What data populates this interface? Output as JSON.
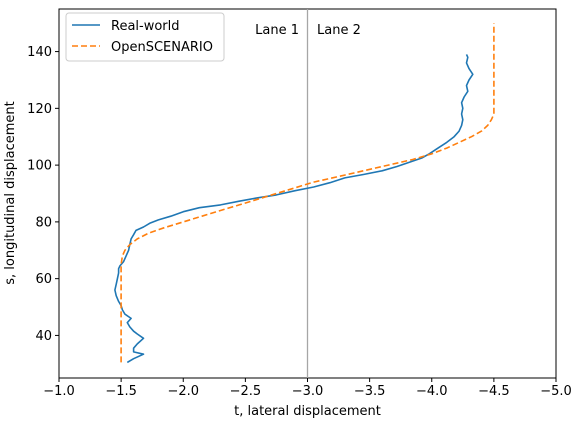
{
  "chart_data": {
    "type": "line",
    "xlabel": "t, lateral displacement",
    "ylabel": "s, longitudinal displacement",
    "xlim": [
      -1.0,
      -5.0
    ],
    "ylim": [
      25,
      155
    ],
    "xticks": [
      -1.0,
      -1.5,
      -2.0,
      -2.5,
      -3.0,
      -3.5,
      -4.0,
      -4.5,
      -5.0
    ],
    "xtick_labels": [
      "−1.0",
      "−1.5",
      "−2.0",
      "−2.5",
      "−3.0",
      "−3.5",
      "−4.0",
      "−4.5",
      "−5.0"
    ],
    "yticks": [
      40,
      60,
      80,
      100,
      120,
      140
    ],
    "ytick_labels": [
      "40",
      "60",
      "80",
      "100",
      "120",
      "140"
    ],
    "x_axis_inverted": true,
    "grid": false,
    "legend_position": "upper-left",
    "colors": {
      "real_world": "#1f77b4",
      "openscenario": "#ff7f0e",
      "lane_divider": "#a6a6a6"
    },
    "lane_divider": {
      "t": -3.0,
      "labels": [
        "Lane 1",
        "Lane 2"
      ]
    },
    "series": [
      {
        "name": "Real-world",
        "style": "solid",
        "points": [
          [
            -1.55,
            30.5
          ],
          [
            -1.6,
            31.8
          ],
          [
            -1.68,
            33.4
          ],
          [
            -1.6,
            34.2
          ],
          [
            -1.6,
            35.5
          ],
          [
            -1.63,
            37.0
          ],
          [
            -1.68,
            39.0
          ],
          [
            -1.63,
            40.5
          ],
          [
            -1.6,
            41.5
          ],
          [
            -1.57,
            43.0
          ],
          [
            -1.55,
            44.5
          ],
          [
            -1.58,
            46.0
          ],
          [
            -1.53,
            47.5
          ],
          [
            -1.51,
            49.0
          ],
          [
            -1.5,
            50.5
          ],
          [
            -1.48,
            52.0
          ],
          [
            -1.46,
            54.0
          ],
          [
            -1.45,
            56.0
          ],
          [
            -1.46,
            58.0
          ],
          [
            -1.47,
            60.0
          ],
          [
            -1.48,
            62.0
          ],
          [
            -1.48,
            63.5
          ],
          [
            -1.49,
            64.5
          ],
          [
            -1.52,
            66.0
          ],
          [
            -1.54,
            68.0
          ],
          [
            -1.56,
            70.0
          ],
          [
            -1.57,
            72.0
          ],
          [
            -1.58,
            74.0
          ],
          [
            -1.6,
            75.5
          ],
          [
            -1.62,
            77.0
          ],
          [
            -1.68,
            78.2
          ],
          [
            -1.73,
            79.5
          ],
          [
            -1.8,
            80.7
          ],
          [
            -1.9,
            82.0
          ],
          [
            -2.0,
            83.6
          ],
          [
            -2.13,
            85.0
          ],
          [
            -2.3,
            86.0
          ],
          [
            -2.45,
            87.3
          ],
          [
            -2.6,
            88.5
          ],
          [
            -2.75,
            89.5
          ],
          [
            -2.9,
            91.0
          ],
          [
            -3.05,
            92.3
          ],
          [
            -3.18,
            93.8
          ],
          [
            -3.3,
            95.5
          ],
          [
            -3.45,
            96.7
          ],
          [
            -3.6,
            98.0
          ],
          [
            -3.72,
            99.5
          ],
          [
            -3.82,
            101.0
          ],
          [
            -3.92,
            102.5
          ],
          [
            -3.98,
            104.0
          ],
          [
            -4.05,
            106.0
          ],
          [
            -4.12,
            108.0
          ],
          [
            -4.18,
            110.0
          ],
          [
            -4.22,
            112.0
          ],
          [
            -4.24,
            114.0
          ],
          [
            -4.25,
            116.0
          ],
          [
            -4.24,
            118.0
          ],
          [
            -4.25,
            120.0
          ],
          [
            -4.24,
            122.0
          ],
          [
            -4.26,
            124.0
          ],
          [
            -4.29,
            126.0
          ],
          [
            -4.28,
            128.0
          ],
          [
            -4.3,
            130.0
          ],
          [
            -4.33,
            132.0
          ],
          [
            -4.3,
            134.0
          ],
          [
            -4.28,
            136.0
          ],
          [
            -4.29,
            138.0
          ],
          [
            -4.28,
            139.0
          ]
        ]
      },
      {
        "name": "OpenSCENARIO",
        "style": "dashed",
        "points": [
          [
            -1.5,
            30.5
          ],
          [
            -1.5,
            40.0
          ],
          [
            -1.5,
            50.0
          ],
          [
            -1.5,
            60.0
          ],
          [
            -1.5,
            65.0
          ],
          [
            -1.51,
            68.0
          ],
          [
            -1.53,
            70.0
          ],
          [
            -1.57,
            72.0
          ],
          [
            -1.63,
            74.0
          ],
          [
            -1.72,
            76.0
          ],
          [
            -1.85,
            78.0
          ],
          [
            -2.0,
            80.0
          ],
          [
            -2.15,
            82.0
          ],
          [
            -2.3,
            84.0
          ],
          [
            -2.45,
            86.0
          ],
          [
            -2.6,
            88.0
          ],
          [
            -2.75,
            90.0
          ],
          [
            -2.9,
            92.0
          ],
          [
            -3.05,
            94.0
          ],
          [
            -3.25,
            96.0
          ],
          [
            -3.45,
            98.0
          ],
          [
            -3.65,
            100.0
          ],
          [
            -3.85,
            102.0
          ],
          [
            -4.0,
            104.0
          ],
          [
            -4.12,
            106.0
          ],
          [
            -4.22,
            108.0
          ],
          [
            -4.32,
            110.0
          ],
          [
            -4.4,
            112.0
          ],
          [
            -4.45,
            114.0
          ],
          [
            -4.48,
            116.0
          ],
          [
            -4.5,
            118.0
          ],
          [
            -4.5,
            120.0
          ],
          [
            -4.5,
            130.0
          ],
          [
            -4.5,
            140.0
          ],
          [
            -4.5,
            150.0
          ]
        ]
      }
    ]
  }
}
